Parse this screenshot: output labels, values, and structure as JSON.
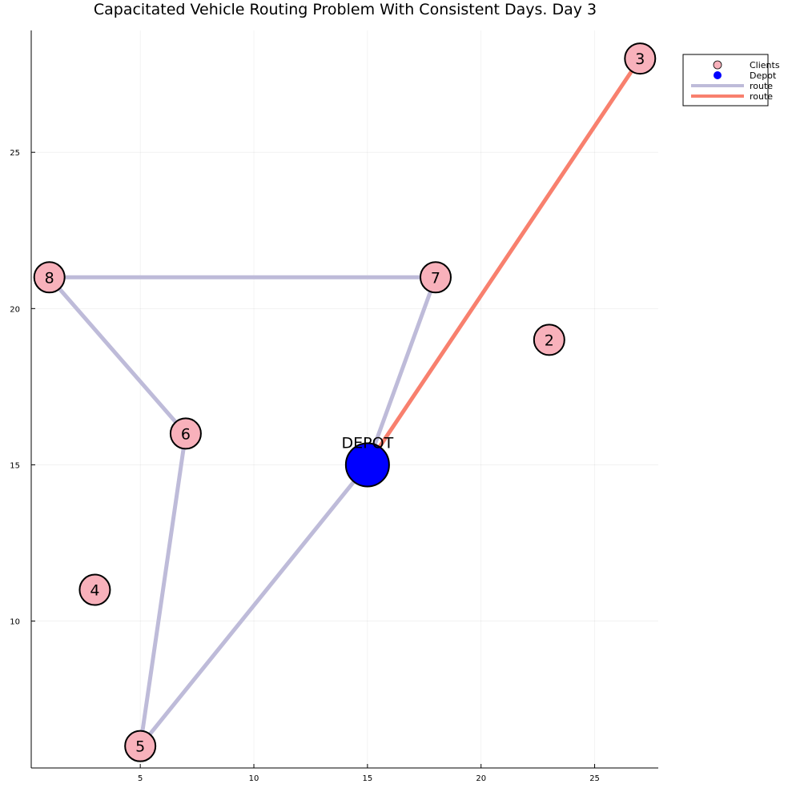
{
  "chart_data": {
    "type": "scatter",
    "title": "Capacitated Vehicle Routing Problem With Consistent Days. Day 3",
    "xlabel": "",
    "ylabel": "",
    "xlim": [
      0.2,
      27.8
    ],
    "ylim": [
      5.3,
      28.9
    ],
    "xticks": [
      5,
      10,
      15,
      20,
      25
    ],
    "yticks": [
      10,
      15,
      20,
      25
    ],
    "grid": true,
    "legend_position": "top-right",
    "clients": [
      {
        "label": "2",
        "x": 23,
        "y": 19
      },
      {
        "label": "3",
        "x": 27,
        "y": 28
      },
      {
        "label": "4",
        "x": 3,
        "y": 11
      },
      {
        "label": "5",
        "x": 5,
        "y": 6
      },
      {
        "label": "6",
        "x": 7,
        "y": 16
      },
      {
        "label": "7",
        "x": 18,
        "y": 21
      },
      {
        "label": "8",
        "x": 1,
        "y": 21
      }
    ],
    "depot": {
      "label": "DEPOT",
      "x": 15,
      "y": 15
    },
    "series": [
      {
        "name": "Clients",
        "kind": "scatter",
        "color": "#f8b1bb"
      },
      {
        "name": "Depot",
        "kind": "scatter",
        "color": "#0000ff"
      },
      {
        "name": "route",
        "kind": "line",
        "color": "#bebbd9",
        "points": [
          [
            15,
            15
          ],
          [
            5,
            6
          ],
          [
            7,
            16
          ],
          [
            1,
            21
          ],
          [
            18,
            21
          ],
          [
            15,
            15
          ]
        ]
      },
      {
        "name": "route",
        "kind": "line",
        "color": "#f8806e",
        "points": [
          [
            27,
            28
          ],
          [
            15,
            15
          ]
        ]
      }
    ]
  }
}
